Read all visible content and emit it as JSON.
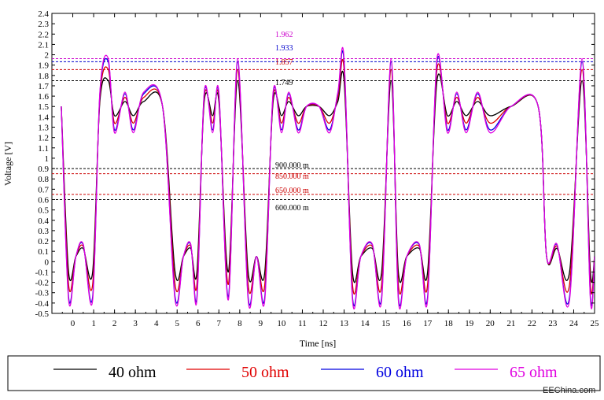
{
  "chart_data": {
    "type": "line",
    "xlabel": "Time [ns]",
    "ylabel": "Voltage [V]",
    "xlim": [
      -1,
      25
    ],
    "ylim": [
      -0.5,
      2.4
    ],
    "x_ticks": [
      "0",
      "1",
      "2",
      "3",
      "4",
      "5",
      "6",
      "7",
      "8",
      "9",
      "10",
      "11",
      "12",
      "13",
      "14",
      "15",
      "16",
      "17",
      "18",
      "19",
      "20",
      "21",
      "22",
      "23",
      "24",
      "25"
    ],
    "y_ticks": [
      "-0.5",
      "-0.4",
      "-0.3",
      "-0.2",
      "-0.1",
      "0",
      "0.1",
      "0.2",
      "0.3",
      "0.4",
      "0.5",
      "0.6",
      "0.7",
      "0.8",
      "0.9",
      "1",
      "1.1",
      "1.2",
      "1.3",
      "1.4",
      "1.5",
      "1.6",
      "1.7",
      "1.8",
      "1.9",
      "2",
      "2.1",
      "2.2",
      "2.3",
      "2.4"
    ],
    "annotations": [
      {
        "label": "1.962",
        "value": 1.962,
        "color": "#cc00cc"
      },
      {
        "label": "1.933",
        "value": 1.933,
        "color": "#0000cc"
      },
      {
        "label": "1.857",
        "value": 1.857,
        "color": "#cc0000"
      },
      {
        "label": "1.749",
        "value": 1.749,
        "color": "#000000"
      },
      {
        "label": "900.000 m",
        "value": 0.9,
        "color": "#000000"
      },
      {
        "label": "850.000 m",
        "value": 0.85,
        "color": "#cc0000"
      },
      {
        "label": "650.000 m",
        "value": 0.65,
        "color": "#cc0000"
      },
      {
        "label": "600.000 m",
        "value": 0.6,
        "color": "#000000"
      }
    ],
    "series": [
      {
        "name": "40 ohm",
        "color": "#000000",
        "peak": 1.749,
        "trough": -0.1,
        "ring": 0.65
      },
      {
        "name": "50 ohm",
        "color": "#e00000",
        "peak": 1.857,
        "trough": -0.22,
        "ring": 0.82
      },
      {
        "name": "60 ohm",
        "color": "#0000e0",
        "peak": 1.933,
        "trough": -0.34,
        "ring": 0.95
      },
      {
        "name": "65 ohm",
        "color": "#e000e0",
        "peak": 1.962,
        "trough": -0.37,
        "ring": 1.0
      }
    ],
    "waveform": {
      "t": [
        -0.55,
        -0.2,
        0.15,
        0.5,
        0.95,
        1.3,
        1.7,
        2.0,
        2.5,
        2.9,
        3.4,
        4.3,
        4.9,
        5.3,
        5.65,
        5.95,
        6.3,
        6.7,
        7.0,
        7.45,
        7.9,
        8.4,
        8.8,
        9.2,
        9.6,
        10.0,
        10.35,
        10.8,
        11.2,
        11.8,
        12.3,
        12.7,
        13.0,
        13.4,
        13.8,
        14.35,
        14.8,
        15.25,
        15.6,
        16.0,
        16.6,
        17.0,
        17.45,
        17.95,
        18.4,
        18.85,
        19.4,
        20.0,
        21.0,
        22.3,
        22.7,
        23.2,
        23.8,
        24.4,
        24.8,
        25.0
      ],
      "kinds": [
        "h",
        "t",
        "l",
        "tr",
        "t",
        "r",
        "pk",
        "t",
        "r",
        "t",
        "r",
        "h",
        "t",
        "l",
        "tr",
        "t",
        "r",
        "t",
        "r",
        "t",
        "pk",
        "t",
        "l",
        "t",
        "r",
        "t",
        "r",
        "t",
        "h",
        "h",
        "t",
        "r",
        "pk",
        "t",
        "l",
        "tr",
        "t",
        "pk",
        "t",
        "l",
        "tr",
        "t",
        "pk",
        "t",
        "r",
        "t",
        "r",
        "t",
        "h",
        "h",
        "l",
        "tr",
        "t",
        "pk",
        "t",
        "l"
      ]
    }
  },
  "legend": {
    "items": [
      {
        "label": "40 ohm",
        "color": "#000000"
      },
      {
        "label": "50 ohm",
        "color": "#e00000"
      },
      {
        "label": "60 ohm",
        "color": "#0000e0"
      },
      {
        "label": "65 ohm",
        "color": "#e000e0"
      }
    ]
  },
  "watermark": "EEChina.com"
}
